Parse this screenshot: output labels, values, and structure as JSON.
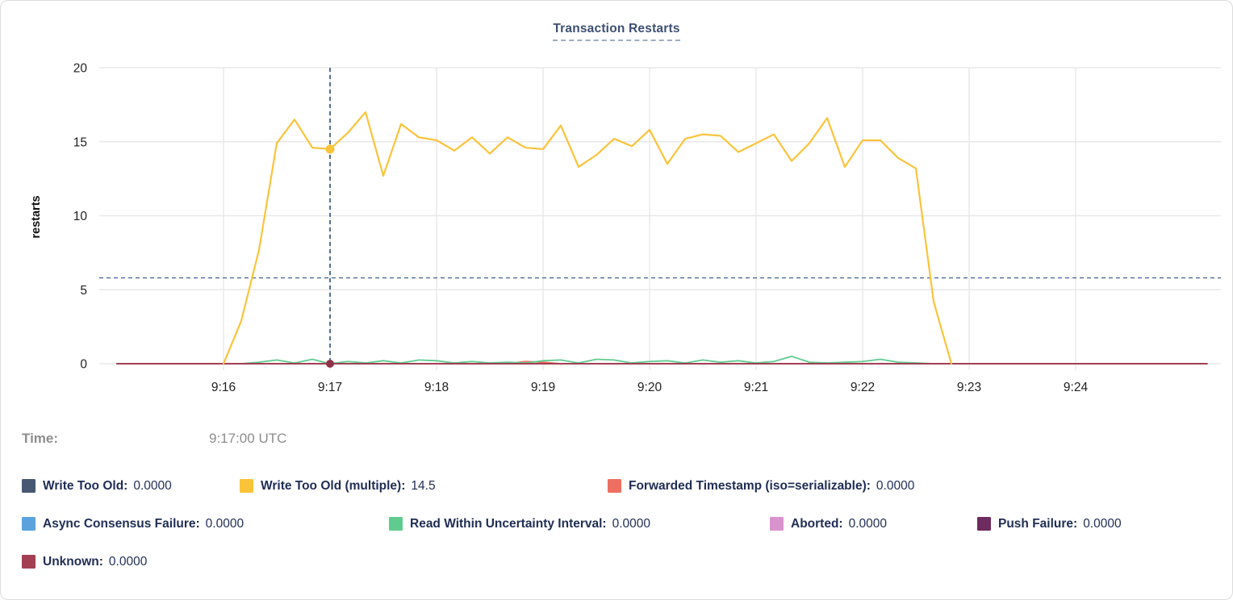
{
  "tooltip": {
    "time_label": "Time:",
    "time_value": "9:17:00 UTC"
  },
  "chart_data": {
    "type": "line",
    "title": "Transaction Restarts",
    "ylabel": "restarts",
    "ylim": [
      0,
      20
    ],
    "yticks": [
      0,
      5,
      10,
      15,
      20
    ],
    "xticks": [
      "9:16",
      "9:17",
      "9:18",
      "9:19",
      "9:20",
      "9:21",
      "9:22",
      "9:23",
      "9:24"
    ],
    "x_domain": [
      "9:14:50",
      "9:25:15"
    ],
    "grid": "on",
    "reference_line_y": 5.8,
    "hover": {
      "crosshair_time": "9:17:00",
      "dots": [
        {
          "series_index": 1,
          "value": 14.5
        },
        {
          "series_index": 7,
          "value": 0
        }
      ]
    },
    "series": [
      {
        "name": "Write Too Old",
        "color": "#475872",
        "hover_value": "0.0000",
        "flat_value": 0,
        "x_start": "9:15:00",
        "x_end": "9:25:14"
      },
      {
        "name": "Write Too Old (multiple)",
        "color": "#FBC339",
        "hover_value": "14.5",
        "x_start": "9:16:00",
        "interval_seconds": 10,
        "values": [
          0,
          2.9,
          7.7,
          14.9,
          16.5,
          14.6,
          14.5,
          15.6,
          17.0,
          12.7,
          16.2,
          15.3,
          15.1,
          14.4,
          15.3,
          14.2,
          15.3,
          14.6,
          14.5,
          16.1,
          13.3,
          14.1,
          15.2,
          14.7,
          15.8,
          13.5,
          15.2,
          15.5,
          15.4,
          14.3,
          14.9,
          15.5,
          13.7,
          14.9,
          16.6,
          13.3,
          15.1,
          15.1,
          13.9,
          13.2,
          4.2,
          0
        ]
      },
      {
        "name": "Forwarded Timestamp (iso=serializable)",
        "color": "#EE6F62",
        "hover_value": "0.0000",
        "points": [
          [
            "9:15:00",
            0
          ],
          [
            "9:18:40",
            0
          ],
          [
            "9:18:50",
            0.15
          ],
          [
            "9:19:00",
            0.1
          ],
          [
            "9:19:10",
            0
          ],
          [
            "9:25:14",
            0
          ]
        ]
      },
      {
        "name": "Async Consensus Failure",
        "color": "#5BA3DC",
        "hover_value": "0.0000",
        "flat_value": 0,
        "x_start": "9:15:00",
        "x_end": "9:25:14"
      },
      {
        "name": "Read Within Uncertainty Interval",
        "color": "#5FCB8F",
        "hover_value": "0.0000",
        "x_start": "9:15:00",
        "interval_seconds": 10,
        "values": [
          0,
          0,
          0,
          0,
          0,
          0,
          0,
          0,
          0.1,
          0.25,
          0.05,
          0.3,
          0,
          0.15,
          0.05,
          0.2,
          0.05,
          0.25,
          0.2,
          0.05,
          0.15,
          0.05,
          0.1,
          0.05,
          0.2,
          0.25,
          0.05,
          0.3,
          0.25,
          0.05,
          0.15,
          0.2,
          0.05,
          0.25,
          0.1,
          0.2,
          0.05,
          0.15,
          0.5,
          0.1,
          0.05,
          0.1,
          0.15,
          0.3,
          0.1,
          0.05,
          0,
          0,
          0,
          0,
          0,
          0,
          0,
          0,
          0,
          0,
          0,
          0,
          0,
          0,
          0,
          0
        ]
      },
      {
        "name": "Aborted",
        "color": "#D893CE",
        "hover_value": "0.0000",
        "flat_value": 0,
        "x_start": "9:15:00",
        "x_end": "9:25:14"
      },
      {
        "name": "Push Failure",
        "color": "#6E2B60",
        "hover_value": "0.0000",
        "flat_value": 0,
        "x_start": "9:15:00",
        "x_end": "9:25:14"
      },
      {
        "name": "Unknown",
        "color": "#A23F53",
        "hover_value": "0.0000",
        "flat_value": 0,
        "x_start": "9:15:00",
        "x_end": "9:25:14"
      }
    ],
    "legend_rows": [
      [
        {
          "series_index": 0
        },
        {
          "series_index": 1
        },
        {
          "series_index": 2
        }
      ],
      [
        {
          "series_index": 3
        },
        {
          "series_index": 4
        },
        {
          "series_index": 5
        },
        {
          "series_index": 6
        }
      ],
      [
        {
          "series_index": 7
        }
      ]
    ]
  }
}
